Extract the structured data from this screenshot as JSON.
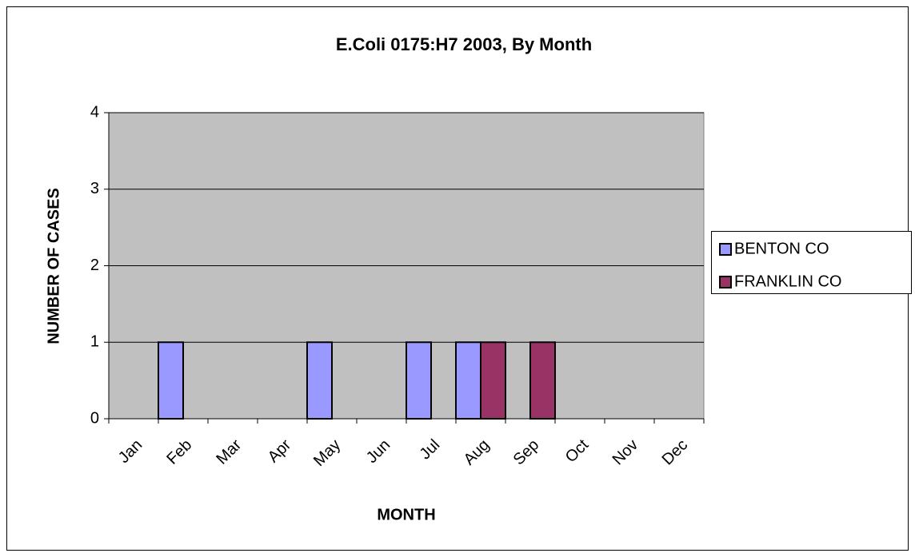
{
  "chart_data": {
    "type": "bar",
    "title": "E.Coli 0175:H7 2003, By Month",
    "x_label": "MONTH",
    "y_label": "NUMBER OF CASES",
    "categories": [
      "Jan",
      "Feb",
      "Mar",
      "Apr",
      "May",
      "Jun",
      "Jul",
      "Aug",
      "Sep",
      "Oct",
      "Nov",
      "Dec"
    ],
    "series": [
      {
        "name": "BENTON CO",
        "color": "#9999ff",
        "values": [
          0,
          1,
          0,
          0,
          1,
          0,
          1,
          1,
          0,
          0,
          0,
          0
        ]
      },
      {
        "name": "FRANKLIN CO",
        "color": "#993366",
        "values": [
          0,
          0,
          0,
          0,
          0,
          0,
          0,
          1,
          1,
          0,
          0,
          0
        ]
      }
    ],
    "ylim": [
      0,
      4
    ],
    "yticks": [
      0,
      1,
      2,
      3,
      4
    ],
    "grid": true,
    "legend": "right",
    "plot_background": "#c0c0c0"
  }
}
